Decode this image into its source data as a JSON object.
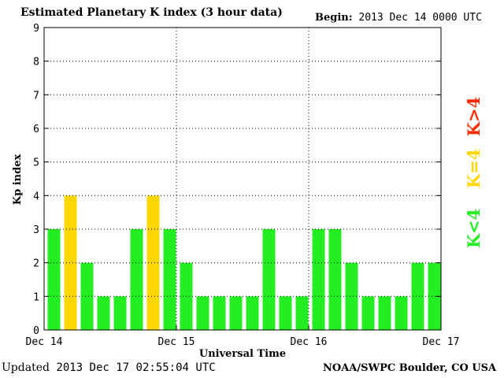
{
  "header": {
    "title": "Estimated Planetary K index (3 hour data)",
    "begin_label": "Begin:",
    "begin_value": "2013 Dec 14 0000 UTC"
  },
  "footer": {
    "updated_label": "Updated",
    "updated_value": "2013 Dec 17 02:55:04 UTC",
    "credit": "NOAA/SWPC Boulder, CO USA"
  },
  "legend": [
    {
      "label": "K<4",
      "color": "#22ee22"
    },
    {
      "label": "K=4",
      "color": "#ffd700"
    },
    {
      "label": "K>4",
      "color": "#ff2a00"
    }
  ],
  "chart_data": {
    "type": "bar",
    "title": "Estimated Planetary K index (3 hour data)",
    "xlabel": "Universal Time",
    "ylabel": "Kp index",
    "ylim": [
      0,
      9
    ],
    "yticks": [
      0,
      1,
      2,
      3,
      4,
      5,
      6,
      7,
      8,
      9
    ],
    "x_tick_labels": [
      "Dec 14",
      "Dec 15",
      "Dec 16",
      "Dec 17"
    ],
    "grid": true,
    "interval_hours": 3,
    "colors": {
      "below": "#22ee22",
      "equal": "#ffd700",
      "above": "#ff2a00"
    },
    "values": [
      3,
      4,
      2,
      1,
      1,
      3,
      4,
      3,
      2,
      1,
      1,
      1,
      1,
      3,
      1,
      1,
      3,
      3,
      2,
      1,
      1,
      1,
      2,
      2
    ]
  }
}
